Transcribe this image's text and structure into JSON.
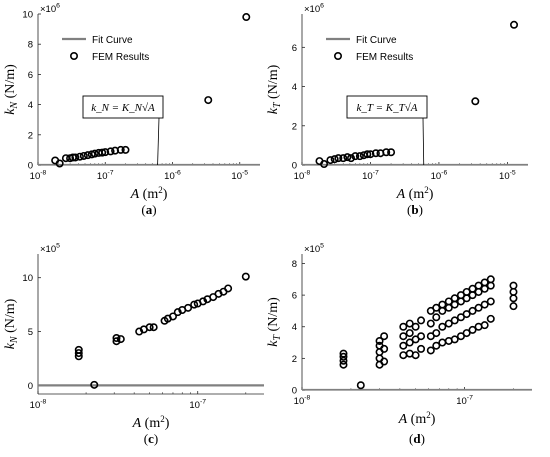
{
  "chart_data": [
    {
      "type": "scatter",
      "panel_label": "(a)",
      "xscale": "log",
      "xlim": [
        1e-08,
        2e-05
      ],
      "ylim": [
        0,
        10
      ],
      "ylabel": "k_N (N/m)",
      "xlabel": "A (m²)",
      "y_multiplier": "×10^6",
      "xticks": [
        1e-08,
        1e-07,
        1e-06,
        1e-05
      ],
      "xticklabels": [
        "10^-8",
        "10^-7",
        "10^-6",
        "10^-5"
      ],
      "yticks": [
        0,
        2,
        4,
        6,
        8,
        10
      ],
      "yticklabels": [
        "0",
        "2",
        "4",
        "6",
        "8",
        "10"
      ],
      "legend": {
        "position": "top-left",
        "entries": [
          "Fit Curve",
          "FEM Results"
        ]
      },
      "annotation": "k_N = K_N√A",
      "series": [
        {
          "name": "Fit Curve",
          "kind": "line",
          "coef": 2200,
          "color": "#808080"
        },
        {
          "name": "FEM Results",
          "kind": "marker",
          "points": [
            [
              1.8e-08,
              0.3
            ],
            [
              2.1e-08,
              0.1
            ],
            [
              2.6e-08,
              0.45
            ],
            [
              3e-08,
              0.45
            ],
            [
              3.3e-08,
              0.5
            ],
            [
              3.6e-08,
              0.5
            ],
            [
              4.2e-08,
              0.55
            ],
            [
              4.8e-08,
              0.6
            ],
            [
              5.5e-08,
              0.65
            ],
            [
              6.3e-08,
              0.7
            ],
            [
              7e-08,
              0.75
            ],
            [
              8e-08,
              0.8
            ],
            [
              9e-08,
              0.82
            ],
            [
              1e-07,
              0.85
            ],
            [
              1.2e-07,
              0.9
            ],
            [
              1.4e-07,
              0.95
            ],
            [
              1.7e-07,
              1.0
            ],
            [
              2e-07,
              1.0
            ],
            [
              3.4e-06,
              4.3
            ],
            [
              1.25e-05,
              9.8
            ]
          ]
        }
      ]
    },
    {
      "type": "scatter",
      "panel_label": "(b)",
      "xscale": "log",
      "xlim": [
        1e-08,
        2e-05
      ],
      "ylim": [
        0,
        7.7
      ],
      "ylabel": "k_T (N/m)",
      "xlabel": "A (m²)",
      "y_multiplier": "×10^6",
      "xticks": [
        1e-08,
        1e-07,
        1e-06,
        1e-05
      ],
      "xticklabels": [
        "10^-8",
        "10^-7",
        "10^-6",
        "10^-5"
      ],
      "yticks": [
        0,
        2,
        4,
        6
      ],
      "yticklabels": [
        "0",
        "2",
        "4",
        "6"
      ],
      "legend": {
        "position": "top-left",
        "entries": [
          "Fit Curve",
          "FEM Results"
        ]
      },
      "annotation": "k_T = K_T√A",
      "series": [
        {
          "name": "Fit Curve",
          "kind": "line",
          "coef": 1650,
          "color": "#808080"
        },
        {
          "name": "FEM Results",
          "kind": "marker",
          "points": [
            [
              1.8e-08,
              0.2
            ],
            [
              2.1e-08,
              0.05
            ],
            [
              2.6e-08,
              0.25
            ],
            [
              3e-08,
              0.3
            ],
            [
              3.4e-08,
              0.35
            ],
            [
              4e-08,
              0.35
            ],
            [
              4.6e-08,
              0.4
            ],
            [
              5.2e-08,
              0.35
            ],
            [
              6e-08,
              0.45
            ],
            [
              7e-08,
              0.45
            ],
            [
              8e-08,
              0.5
            ],
            [
              9e-08,
              0.55
            ],
            [
              1e-07,
              0.55
            ],
            [
              1.2e-07,
              0.6
            ],
            [
              1.4e-07,
              0.6
            ],
            [
              1.7e-07,
              0.65
            ],
            [
              2e-07,
              0.65
            ],
            [
              3.4e-06,
              3.25
            ],
            [
              1.25e-05,
              7.15
            ]
          ]
        }
      ]
    },
    {
      "type": "scatter",
      "panel_label": "(c)",
      "xscale": "log",
      "xlim": [
        1e-08,
        2.6e-07
      ],
      "ylim": [
        -0.8,
        12.2
      ],
      "ylabel": "k_N (N/m)",
      "xlabel": "A (m²)",
      "y_multiplier": "×10^5",
      "xticks": [
        1e-08,
        1e-07
      ],
      "xticklabels": [
        "10^-8",
        "10^-7"
      ],
      "yticks": [
        0,
        5,
        10
      ],
      "yticklabels": [
        "0",
        "5",
        "10"
      ],
      "annotation": "",
      "series": [
        {
          "name": "Fit Curve",
          "kind": "line",
          "coef": 220,
          "color": "#808080"
        },
        {
          "name": "FEM Results",
          "kind": "marker",
          "points": [
            [
              1.8e-08,
              2.7
            ],
            [
              1.8e-08,
              3.0
            ],
            [
              1.8e-08,
              3.3
            ],
            [
              2.25e-08,
              0.05
            ],
            [
              3.1e-08,
              4.1
            ],
            [
              3.1e-08,
              4.4
            ],
            [
              3.3e-08,
              4.3
            ],
            [
              4.3e-08,
              5.0
            ],
            [
              4.6e-08,
              5.2
            ],
            [
              5e-08,
              5.4
            ],
            [
              5.3e-08,
              5.4
            ],
            [
              6.2e-08,
              6.0
            ],
            [
              6.5e-08,
              6.2
            ],
            [
              7e-08,
              6.4
            ],
            [
              7.5e-08,
              6.8
            ],
            [
              8e-08,
              7.0
            ],
            [
              8.7e-08,
              7.2
            ],
            [
              9.5e-08,
              7.5
            ],
            [
              1e-07,
              7.6
            ],
            [
              1.08e-07,
              7.8
            ],
            [
              1.15e-07,
              8.0
            ],
            [
              1.25e-07,
              8.2
            ],
            [
              1.35e-07,
              8.5
            ],
            [
              1.45e-07,
              8.7
            ],
            [
              1.55e-07,
              9.0
            ],
            [
              2e-07,
              10.1
            ]
          ]
        }
      ]
    },
    {
      "type": "scatter",
      "panel_label": "(d)",
      "xscale": "log",
      "xlim": [
        1e-08,
        2.6e-07
      ],
      "ylim": [
        0,
        8.6
      ],
      "ylabel": "k_T (N/m)",
      "xlabel": "A (m²)",
      "y_multiplier": "×10^5",
      "xticks": [
        1e-08,
        1e-07
      ],
      "xticklabels": [
        "10^-8",
        "10^-7"
      ],
      "yticks": [
        0,
        2,
        4,
        6,
        8
      ],
      "yticklabels": [
        "0",
        "2",
        "4",
        "6",
        "8"
      ],
      "annotation": "",
      "series": [
        {
          "name": "Fit Curve",
          "kind": "line",
          "coef": 150,
          "color": "#808080"
        },
        {
          "name": "FEM Results",
          "kind": "marker",
          "points": [
            [
              1.8e-08,
              1.6
            ],
            [
              1.8e-08,
              1.85
            ],
            [
              1.8e-08,
              2.1
            ],
            [
              1.8e-08,
              2.3
            ],
            [
              2.3e-08,
              0.3
            ],
            [
              3e-08,
              1.6
            ],
            [
              3e-08,
              2.0
            ],
            [
              3e-08,
              2.4
            ],
            [
              3e-08,
              2.8
            ],
            [
              3e-08,
              3.1
            ],
            [
              3.2e-08,
              1.8
            ],
            [
              3.2e-08,
              2.6
            ],
            [
              3.2e-08,
              3.4
            ],
            [
              4.2e-08,
              2.2
            ],
            [
              4.2e-08,
              2.8
            ],
            [
              4.2e-08,
              3.4
            ],
            [
              4.2e-08,
              4.0
            ],
            [
              4.6e-08,
              2.3
            ],
            [
              4.6e-08,
              3.0
            ],
            [
              4.6e-08,
              3.6
            ],
            [
              4.6e-08,
              4.2
            ],
            [
              5e-08,
              2.2
            ],
            [
              5e-08,
              3.2
            ],
            [
              5e-08,
              4.0
            ],
            [
              5.4e-08,
              2.6
            ],
            [
              5.4e-08,
              3.4
            ],
            [
              5.4e-08,
              4.4
            ],
            [
              6.2e-08,
              2.5
            ],
            [
              6.2e-08,
              3.4
            ],
            [
              6.2e-08,
              4.2
            ],
            [
              6.2e-08,
              5.0
            ],
            [
              6.7e-08,
              2.8
            ],
            [
              6.7e-08,
              3.6
            ],
            [
              6.7e-08,
              4.6
            ],
            [
              6.7e-08,
              5.2
            ],
            [
              7.3e-08,
              3.0
            ],
            [
              7.3e-08,
              4.0
            ],
            [
              7.3e-08,
              5.0
            ],
            [
              7.3e-08,
              5.4
            ],
            [
              8e-08,
              3.1
            ],
            [
              8e-08,
              4.2
            ],
            [
              8e-08,
              5.2
            ],
            [
              8e-08,
              5.6
            ],
            [
              8.7e-08,
              3.2
            ],
            [
              8.7e-08,
              4.4
            ],
            [
              8.7e-08,
              5.4
            ],
            [
              8.7e-08,
              5.8
            ],
            [
              9.5e-08,
              3.4
            ],
            [
              9.5e-08,
              4.6
            ],
            [
              9.5e-08,
              5.6
            ],
            [
              9.5e-08,
              6.0
            ],
            [
              1.03e-07,
              3.6
            ],
            [
              1.03e-07,
              4.8
            ],
            [
              1.03e-07,
              5.8
            ],
            [
              1.03e-07,
              6.2
            ],
            [
              1.12e-07,
              3.8
            ],
            [
              1.12e-07,
              5.0
            ],
            [
              1.12e-07,
              6.0
            ],
            [
              1.12e-07,
              6.4
            ],
            [
              1.22e-07,
              4.0
            ],
            [
              1.22e-07,
              5.2
            ],
            [
              1.22e-07,
              6.2
            ],
            [
              1.22e-07,
              6.6
            ],
            [
              1.33e-07,
              4.1
            ],
            [
              1.33e-07,
              5.4
            ],
            [
              1.33e-07,
              6.4
            ],
            [
              1.33e-07,
              6.8
            ],
            [
              1.45e-07,
              4.5
            ],
            [
              1.45e-07,
              5.6
            ],
            [
              1.45e-07,
              6.6
            ],
            [
              1.45e-07,
              7.0
            ],
            [
              2e-07,
              5.3
            ],
            [
              2e-07,
              5.8
            ],
            [
              2e-07,
              6.2
            ],
            [
              2e-07,
              6.6
            ]
          ]
        }
      ]
    }
  ]
}
